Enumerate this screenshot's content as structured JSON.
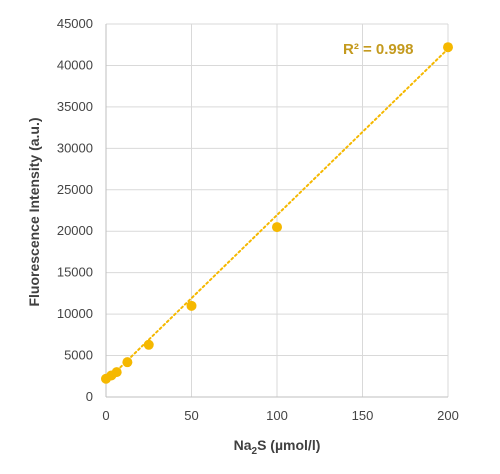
{
  "chart_data": {
    "type": "scatter",
    "xlabel_main": "Na",
    "xlabel_sub": "2",
    "xlabel_rest": "S (µmol/l)",
    "ylabel": "Fluorescence Intensity (a.u.)",
    "xlim": [
      0,
      200
    ],
    "ylim": [
      0,
      45000
    ],
    "x_ticks": [
      0,
      50,
      100,
      150,
      200
    ],
    "y_ticks": [
      0,
      5000,
      10000,
      15000,
      20000,
      25000,
      30000,
      35000,
      40000,
      45000
    ],
    "grid": true,
    "series": [
      {
        "x": [
          0,
          3.125,
          6.25,
          12.5,
          25,
          50,
          100,
          200
        ],
        "y": [
          2200,
          2600,
          3000,
          4200,
          6300,
          11000,
          20500,
          42200
        ],
        "color": "#f5b800"
      }
    ],
    "trendline": {
      "kind": "linear",
      "style": "dotted",
      "color": "#f5b800",
      "x": [
        0,
        200
      ],
      "y": [
        1900,
        42000
      ]
    },
    "annotation": {
      "text": "R² = 0.998",
      "color": "#c49a1e"
    }
  }
}
